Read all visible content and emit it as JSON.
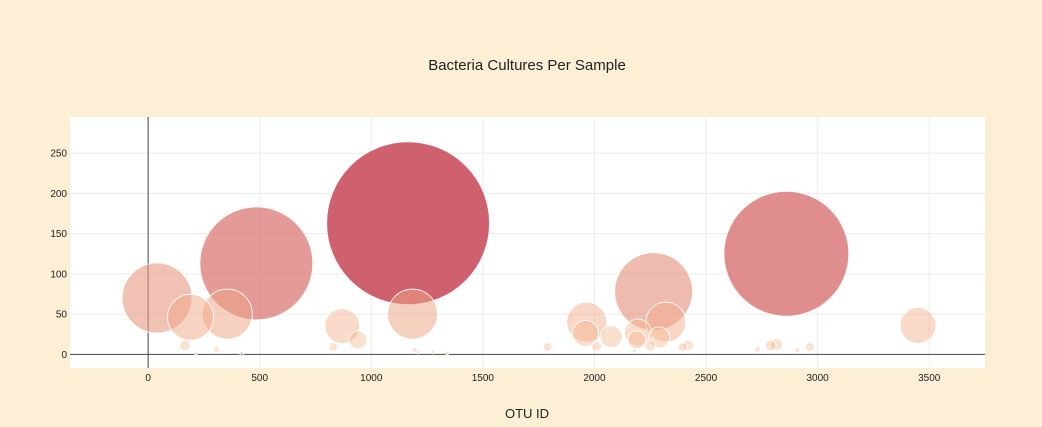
{
  "chart_data": {
    "type": "scatter",
    "title": "Bacteria Cultures Per Sample",
    "xlabel": "OTU ID",
    "ylabel": "",
    "xlim": [
      -350,
      3750
    ],
    "ylim": [
      -17,
      295
    ],
    "x_ticks": [
      0,
      500,
      1000,
      1500,
      2000,
      2500,
      3000,
      3500
    ],
    "y_ticks": [
      0,
      50,
      100,
      150,
      200,
      250
    ],
    "grid": true,
    "colors": {
      "background": "#fdefd6",
      "plot_background": "#ffffff",
      "grid": "#ececec",
      "bubble_low": "#f4b48c",
      "bubble_high": "#c84a5c"
    },
    "series": [
      {
        "points": [
          {
            "x": 40,
            "y": 70
          },
          {
            "x": 190,
            "y": 46
          },
          {
            "x": 355,
            "y": 50
          },
          {
            "x": 485,
            "y": 113
          },
          {
            "x": 870,
            "y": 35
          },
          {
            "x": 940,
            "y": 18
          },
          {
            "x": 1165,
            "y": 163
          },
          {
            "x": 1185,
            "y": 50
          },
          {
            "x": 1965,
            "y": 40
          },
          {
            "x": 1960,
            "y": 26
          },
          {
            "x": 2075,
            "y": 22
          },
          {
            "x": 2265,
            "y": 78
          },
          {
            "x": 2320,
            "y": 40
          },
          {
            "x": 2195,
            "y": 27
          },
          {
            "x": 2190,
            "y": 18
          },
          {
            "x": 2290,
            "y": 21
          },
          {
            "x": 2860,
            "y": 125
          },
          {
            "x": 3450,
            "y": 36
          },
          {
            "x": 165,
            "y": 11
          },
          {
            "x": 305,
            "y": 6
          },
          {
            "x": 830,
            "y": 9
          },
          {
            "x": 1195,
            "y": 5
          },
          {
            "x": 1275,
            "y": 3
          },
          {
            "x": 1790,
            "y": 9
          },
          {
            "x": 2010,
            "y": 10
          },
          {
            "x": 2250,
            "y": 11
          },
          {
            "x": 2420,
            "y": 11
          },
          {
            "x": 2395,
            "y": 9
          },
          {
            "x": 2730,
            "y": 6
          },
          {
            "x": 2790,
            "y": 11
          },
          {
            "x": 2815,
            "y": 12
          },
          {
            "x": 2910,
            "y": 5
          },
          {
            "x": 2965,
            "y": 9
          },
          {
            "x": 215,
            "y": 2
          },
          {
            "x": 420,
            "y": 1
          },
          {
            "x": 1340,
            "y": 2
          },
          {
            "x": 1210,
            "y": 3
          },
          {
            "x": 2180,
            "y": 4
          }
        ]
      }
    ]
  }
}
